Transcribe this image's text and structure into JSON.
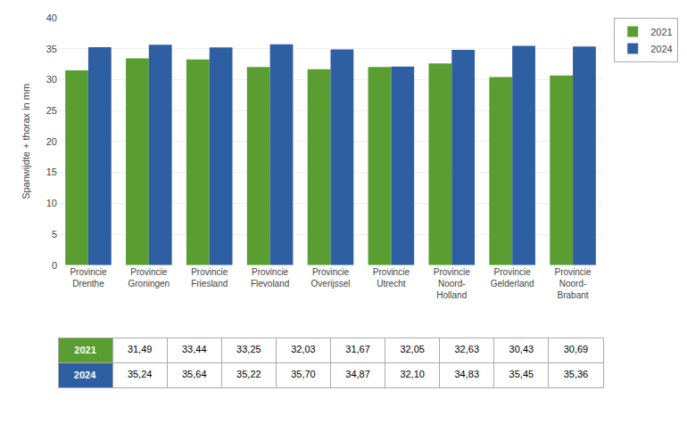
{
  "chart_data": {
    "type": "bar",
    "ylabel": "Spanwijdte + thorax in mm",
    "categories": [
      "Provincie\nDrenthe",
      "Provincie\nGroningen",
      "Provincie\nFriesland",
      "Provincie\nFlevoland",
      "Provincie\nOverijssel",
      "Provincie\nUtrecht",
      "Provincie\nNoord-\nHolland",
      "Provincie\nGelderland",
      "Provincie\nNoord-\nBrabant"
    ],
    "series": [
      {
        "name": "2021",
        "color": "#5a9e32",
        "values": [
          31.49,
          33.44,
          33.25,
          32.03,
          31.67,
          32.05,
          32.63,
          30.43,
          30.69
        ],
        "value_labels": [
          "31,49",
          "33,44",
          "33,25",
          "32,03",
          "31,67",
          "32,05",
          "32,63",
          "30,43",
          "30,69"
        ]
      },
      {
        "name": "2024",
        "color": "#2e5fa3",
        "values": [
          35.24,
          35.64,
          35.22,
          35.7,
          34.87,
          32.1,
          34.83,
          35.45,
          35.36
        ],
        "value_labels": [
          "35,24",
          "35,64",
          "35,22",
          "35,70",
          "34,87",
          "32,10",
          "34,83",
          "35,45",
          "35,36"
        ]
      }
    ],
    "ylim": [
      0,
      40
    ],
    "yticks": [
      0,
      5,
      10,
      15,
      20,
      25,
      30,
      35,
      40
    ],
    "grid": true,
    "legend": "upper right"
  }
}
